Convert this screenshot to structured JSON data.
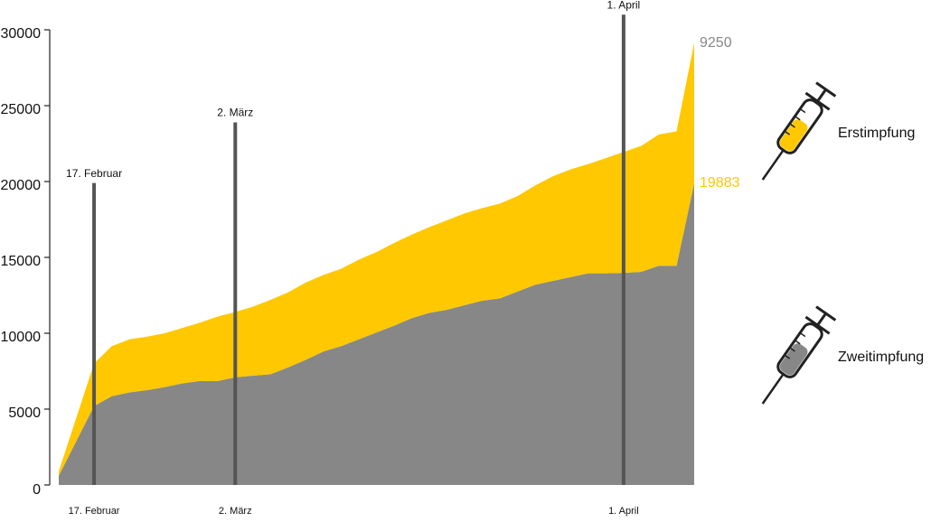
{
  "chart_data": {
    "type": "stacked_area",
    "categories": [
      null,
      null,
      "17. Februar",
      null,
      null,
      null,
      null,
      null,
      null,
      null,
      "2. März",
      null,
      null,
      null,
      null,
      null,
      null,
      null,
      null,
      null,
      null,
      null,
      null,
      null,
      null,
      null,
      null,
      null,
      null,
      null,
      null,
      null,
      "1. April",
      null,
      null,
      null,
      null
    ],
    "series": [
      {
        "name": "Zweitimpfung",
        "color": "#878787",
        "label_color": "#ffc800",
        "values": [
          600,
          2900,
          5200,
          5850,
          6100,
          6250,
          6450,
          6700,
          6850,
          6850,
          7100,
          7200,
          7300,
          7750,
          8250,
          8800,
          9150,
          9600,
          10050,
          10500,
          11000,
          11350,
          11550,
          11850,
          12150,
          12300,
          12750,
          13200,
          13450,
          13700,
          13950,
          13950,
          13980,
          14050,
          14450,
          14450,
          19883
        ],
        "value_labels": [
          null,
          null,
          null,
          null,
          null,
          null,
          null,
          null,
          null,
          null,
          null,
          null,
          null,
          null,
          null,
          null,
          null,
          null,
          null,
          null,
          null,
          null,
          null,
          null,
          null,
          null,
          null,
          null,
          null,
          null,
          null,
          null,
          null,
          null,
          null,
          null,
          "19883"
        ]
      },
      {
        "name": "Erstimpfung",
        "color": "#ffc800",
        "label_color": "#878787",
        "values": [
          300,
          1550,
          2800,
          3300,
          3500,
          3530,
          3550,
          3650,
          3850,
          4250,
          4300,
          4550,
          4900,
          4950,
          5100,
          5050,
          5100,
          5250,
          5300,
          5450,
          5500,
          5650,
          5900,
          6050,
          6100,
          6250,
          6300,
          6550,
          6900,
          7100,
          7200,
          7600,
          7970,
          8300,
          8650,
          8850,
          9250
        ],
        "value_labels": [
          null,
          null,
          null,
          null,
          null,
          null,
          null,
          null,
          null,
          null,
          null,
          null,
          null,
          null,
          null,
          null,
          null,
          null,
          null,
          null,
          null,
          null,
          null,
          null,
          null,
          null,
          null,
          null,
          null,
          null,
          null,
          null,
          null,
          null,
          null,
          null,
          "9250"
        ]
      }
    ],
    "events": [
      {
        "label": "17. Februar",
        "height": 19900
      },
      {
        "label": "2. März",
        "height": 23900
      },
      {
        "label": "1. April",
        "height": 31000
      }
    ],
    "ylim": [
      0,
      30000
    ],
    "yticks": [
      0,
      5000,
      10000,
      15000,
      20000,
      25000,
      30000
    ],
    "legend": [
      {
        "label": "Erstimpfung",
        "color": "#ffc800"
      },
      {
        "label": "Zweitimpfung",
        "color": "#878787"
      }
    ]
  }
}
